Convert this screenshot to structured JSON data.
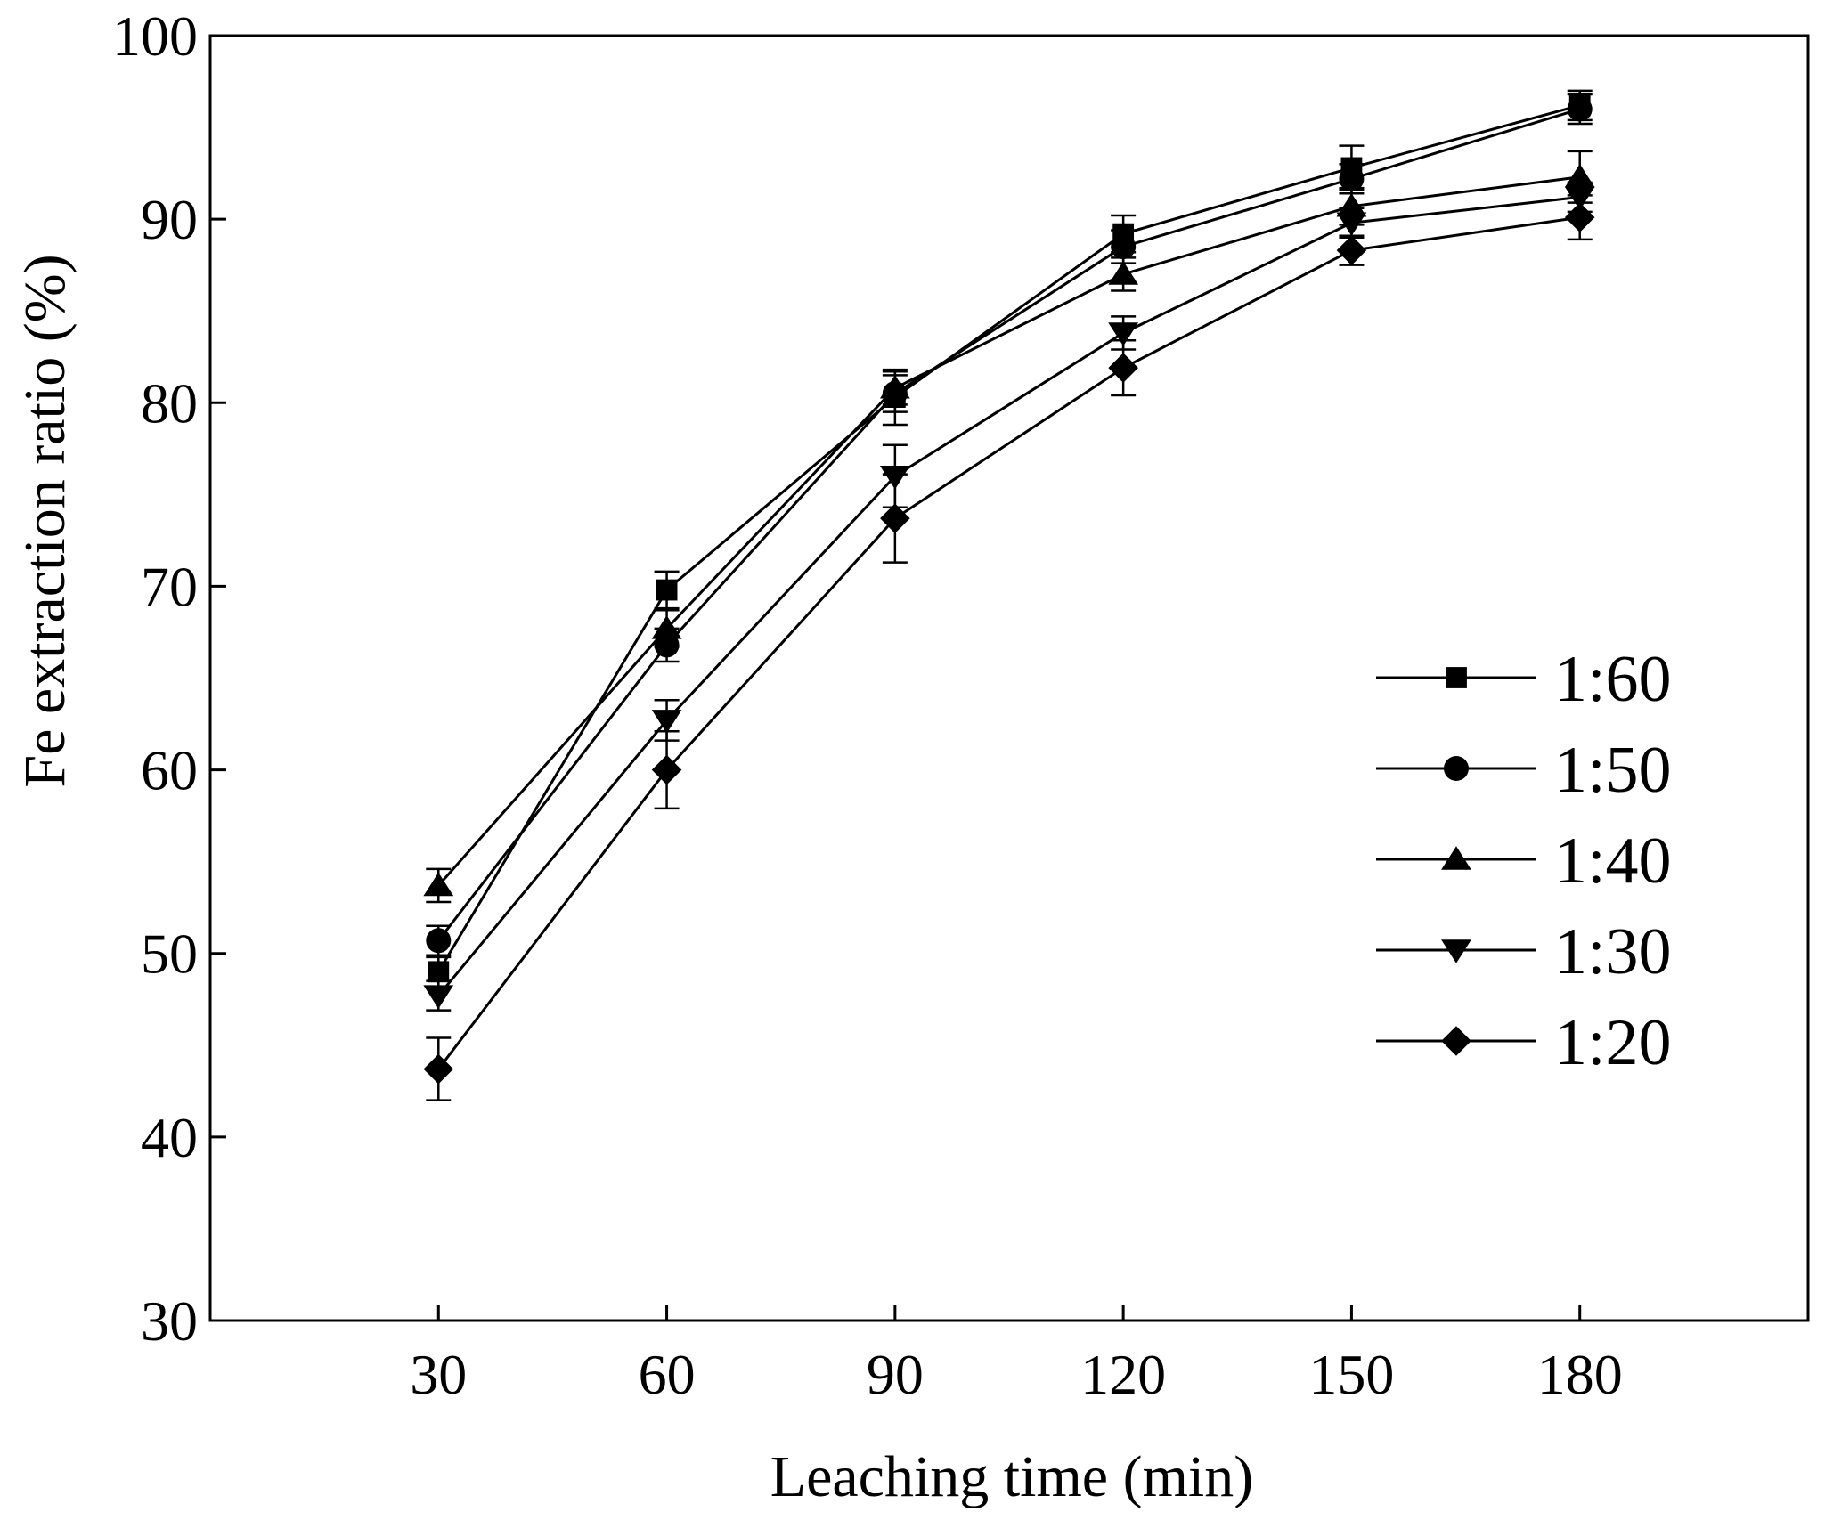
{
  "chart_data": {
    "type": "line",
    "title": "",
    "xlabel": "Leaching time (min)",
    "ylabel": "Fe extraction ratio (%)",
    "x": [
      30,
      60,
      90,
      120,
      150,
      180
    ],
    "xlim": [
      0,
      210
    ],
    "ylim": [
      30,
      100
    ],
    "xticks": [
      30,
      60,
      90,
      120,
      150,
      180
    ],
    "yticks": [
      30,
      40,
      50,
      60,
      70,
      80,
      90,
      100
    ],
    "xtick_labels": [
      "30",
      "60",
      "90",
      "120",
      "150",
      "180"
    ],
    "ytick_labels": [
      "30",
      "40",
      "50",
      "60",
      "70",
      "80",
      "90",
      "100"
    ],
    "grid": false,
    "legend_position": "right",
    "color": "#000000",
    "series": [
      {
        "name": "1:60",
        "marker": "square",
        "values": [
          49.0,
          69.8,
          80.3,
          89.2,
          92.8,
          96.2
        ],
        "errors": [
          0.8,
          1.0,
          1.5,
          1.0,
          1.2,
          0.8
        ]
      },
      {
        "name": "1:50",
        "marker": "circle",
        "values": [
          50.7,
          66.8,
          80.5,
          88.5,
          92.2,
          96.0
        ],
        "errors": [
          0.8,
          0.9,
          1.0,
          0.9,
          0.8,
          0.8
        ]
      },
      {
        "name": "1:40",
        "marker": "triangle-up",
        "values": [
          53.7,
          67.7,
          80.8,
          87.0,
          90.7,
          92.3
        ],
        "errors": [
          0.9,
          1.0,
          0.9,
          0.9,
          1.0,
          1.4
        ]
      },
      {
        "name": "1:30",
        "marker": "triangle-down",
        "values": [
          47.7,
          62.7,
          76.0,
          83.8,
          89.8,
          91.2
        ],
        "errors": [
          0.8,
          1.1,
          1.7,
          0.9,
          0.8,
          0.8
        ]
      },
      {
        "name": "1:20",
        "marker": "diamond",
        "values": [
          43.7,
          60.0,
          73.7,
          81.9,
          88.3,
          90.1
        ],
        "errors": [
          1.7,
          2.1,
          2.4,
          1.5,
          0.8,
          1.2
        ]
      }
    ]
  }
}
